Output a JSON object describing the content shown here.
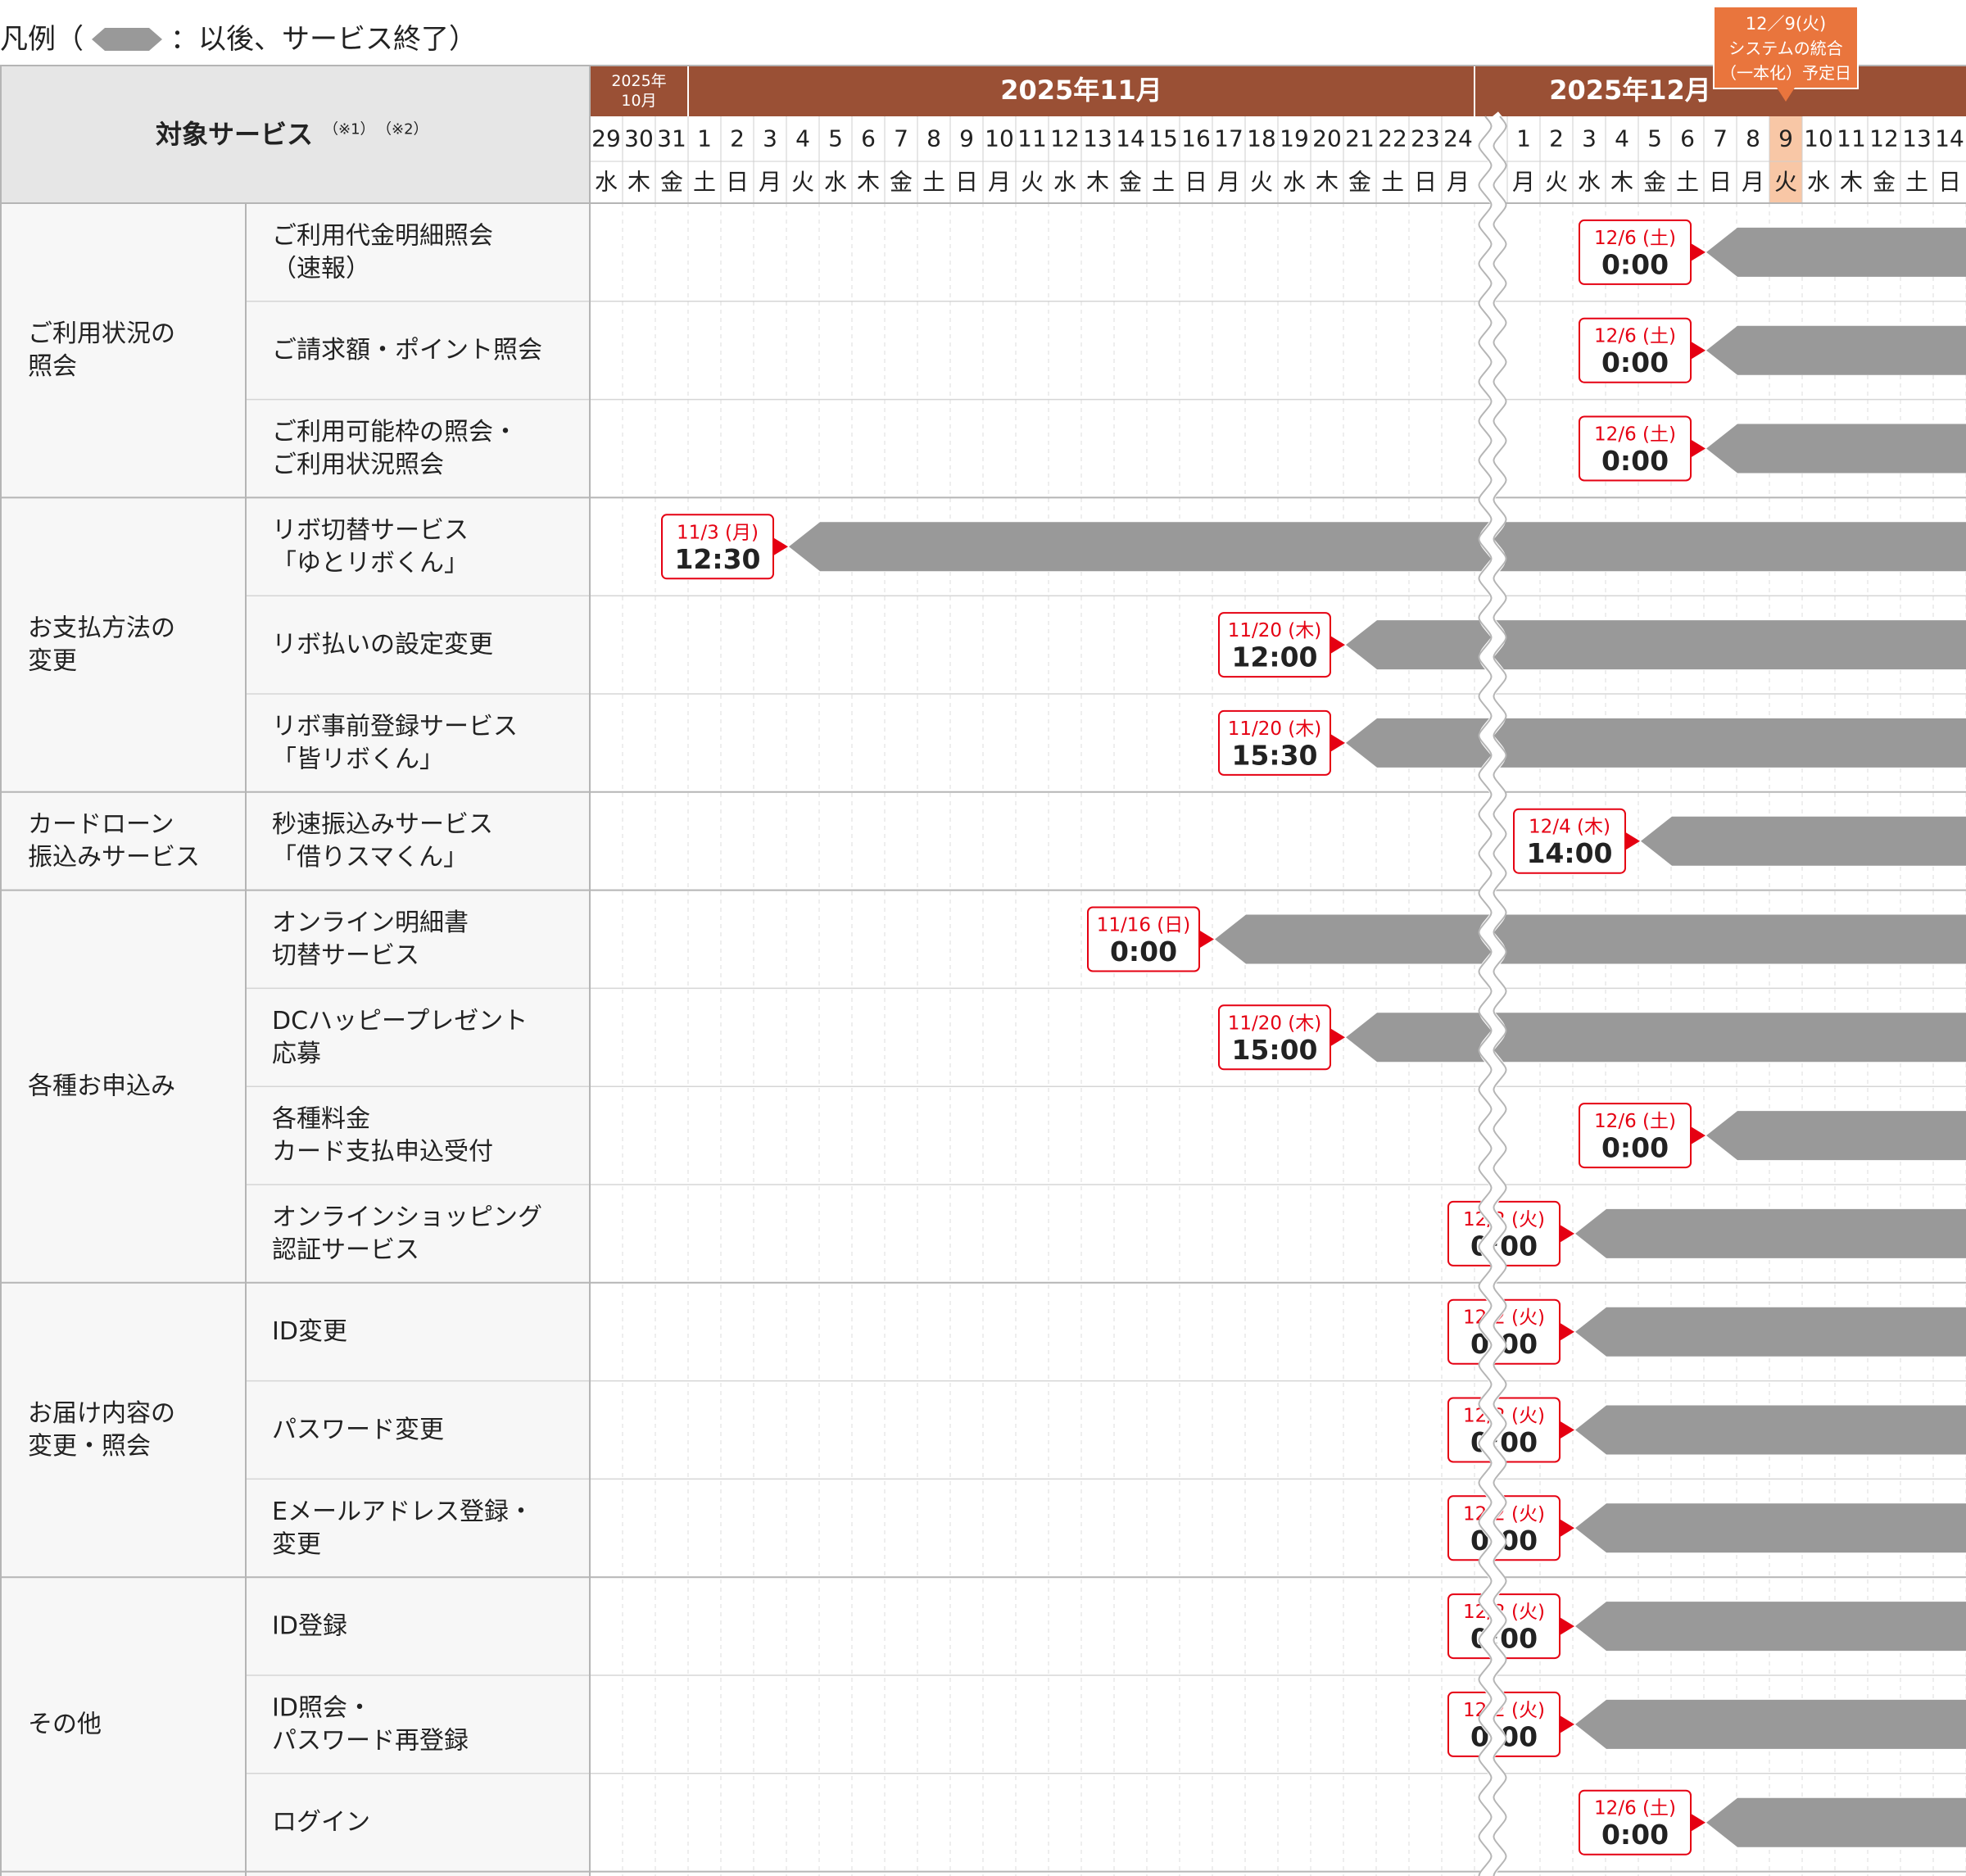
{
  "legend": {
    "prefix": "凡例（",
    "suffix": "：以後、サービス終了）"
  },
  "callout": {
    "line1": "12／9(火)",
    "line2": "システムの統合",
    "line3": "（一本化）予定日"
  },
  "header": {
    "service_label": "対象サービス",
    "note1": "（※1）",
    "note2": "（※2）",
    "october_label": [
      "2025年",
      "10月"
    ],
    "november_label": "2025年11月",
    "december_label": "2025年12月"
  },
  "colors": {
    "header_brown": "#9a5035",
    "highlight_orange": "#e9753d",
    "highlight_cell": "#f8c7a6",
    "bar_gray": "#999999",
    "marker_red": "#e50012"
  },
  "days": [
    {
      "d": "29",
      "w": "水"
    },
    {
      "d": "30",
      "w": "木"
    },
    {
      "d": "31",
      "w": "金"
    },
    {
      "d": "1",
      "w": "土"
    },
    {
      "d": "2",
      "w": "日"
    },
    {
      "d": "3",
      "w": "月"
    },
    {
      "d": "4",
      "w": "火"
    },
    {
      "d": "5",
      "w": "水"
    },
    {
      "d": "6",
      "w": "木"
    },
    {
      "d": "7",
      "w": "金"
    },
    {
      "d": "8",
      "w": "土"
    },
    {
      "d": "9",
      "w": "日"
    },
    {
      "d": "10",
      "w": "月"
    },
    {
      "d": "11",
      "w": "火"
    },
    {
      "d": "12",
      "w": "水"
    },
    {
      "d": "13",
      "w": "木"
    },
    {
      "d": "14",
      "w": "金"
    },
    {
      "d": "15",
      "w": "土"
    },
    {
      "d": "16",
      "w": "日"
    },
    {
      "d": "17",
      "w": "月"
    },
    {
      "d": "18",
      "w": "火"
    },
    {
      "d": "19",
      "w": "水"
    },
    {
      "d": "20",
      "w": "木"
    },
    {
      "d": "21",
      "w": "金"
    },
    {
      "d": "22",
      "w": "土"
    },
    {
      "d": "23",
      "w": "日"
    },
    {
      "d": "24",
      "w": "月"
    },
    {
      "d": "1",
      "w": "月"
    },
    {
      "d": "2",
      "w": "火"
    },
    {
      "d": "3",
      "w": "水"
    },
    {
      "d": "4",
      "w": "木"
    },
    {
      "d": "5",
      "w": "金"
    },
    {
      "d": "6",
      "w": "土"
    },
    {
      "d": "7",
      "w": "日"
    },
    {
      "d": "8",
      "w": "月"
    },
    {
      "d": "9",
      "w": "火",
      "highlight": true
    },
    {
      "d": "10",
      "w": "水"
    },
    {
      "d": "11",
      "w": "木"
    },
    {
      "d": "12",
      "w": "金"
    },
    {
      "d": "13",
      "w": "土"
    },
    {
      "d": "14",
      "w": "日"
    }
  ],
  "groups": [
    {
      "label": [
        "ご利用状況の",
        "照会"
      ],
      "rows": [
        {
          "service": [
            "ご利用代金明細照会",
            "（速報）"
          ],
          "end_date": "12/6 (土)",
          "end_time": "0:00",
          "day_index": 32
        },
        {
          "service": [
            "ご請求額・ポイント照会"
          ],
          "end_date": "12/6 (土)",
          "end_time": "0:00",
          "day_index": 32
        },
        {
          "service": [
            "ご利用可能枠の照会・",
            "ご利用状況照会"
          ],
          "end_date": "12/6 (土)",
          "end_time": "0:00",
          "day_index": 32
        }
      ]
    },
    {
      "label": [
        "お支払方法の",
        "変更"
      ],
      "rows": [
        {
          "service": [
            "リボ切替サービス",
            "「ゆとリボくん」"
          ],
          "end_date": "11/3 (月)",
          "end_time": "12:30",
          "day_index": 5
        },
        {
          "service": [
            "リボ払いの設定変更"
          ],
          "end_date": "11/20 (木)",
          "end_time": "12:00",
          "day_index": 22
        },
        {
          "service": [
            "リボ事前登録サービス",
            "「皆リボくん」"
          ],
          "end_date": "11/20 (木)",
          "end_time": "15:30",
          "day_index": 22
        }
      ]
    },
    {
      "label": [
        "カードローン",
        "振込みサービス"
      ],
      "rows": [
        {
          "service": [
            "秒速振込みサービス",
            "「借りスマくん」"
          ],
          "end_date": "12/4 (木)",
          "end_time": "14:00",
          "day_index": 30
        }
      ]
    },
    {
      "label": [
        "各種お申込み"
      ],
      "rows": [
        {
          "service": [
            "オンライン明細書",
            "切替サービス"
          ],
          "end_date": "11/16 (日)",
          "end_time": "0:00",
          "day_index": 18
        },
        {
          "service": [
            "DCハッピープレゼント",
            "応募"
          ],
          "end_date": "11/20 (木)",
          "end_time": "15:00",
          "day_index": 22
        },
        {
          "service": [
            "各種料金",
            "カード支払申込受付"
          ],
          "end_date": "12/6 (土)",
          "end_time": "0:00",
          "day_index": 32
        },
        {
          "service": [
            "オンラインショッピング",
            "認証サービス"
          ],
          "end_date": "12/2 (火)",
          "end_time": "0:00",
          "day_index": 28
        }
      ]
    },
    {
      "label": [
        "お届け内容の",
        "変更・照会"
      ],
      "rows": [
        {
          "service": [
            "ID変更"
          ],
          "end_date": "12/2 (火)",
          "end_time": "0:00",
          "day_index": 28
        },
        {
          "service": [
            "パスワード変更"
          ],
          "end_date": "12/2 (火)",
          "end_time": "0:00",
          "day_index": 28
        },
        {
          "service": [
            "Eメールアドレス登録・",
            "変更"
          ],
          "end_date": "12/2 (火)",
          "end_time": "0:00",
          "day_index": 28
        }
      ]
    },
    {
      "label": [
        "その他"
      ],
      "rows": [
        {
          "service": [
            "ID登録"
          ],
          "end_date": "12/2 (火)",
          "end_time": "0:00",
          "day_index": 28
        },
        {
          "service": [
            "ID照会・",
            "パスワード再登録"
          ],
          "end_date": "12/2 (火)",
          "end_time": "0:00",
          "day_index": 28
        },
        {
          "service": [
            "ログイン"
          ],
          "end_date": "12/6 (土)",
          "end_time": "0:00",
          "day_index": 32
        }
      ]
    }
  ]
}
